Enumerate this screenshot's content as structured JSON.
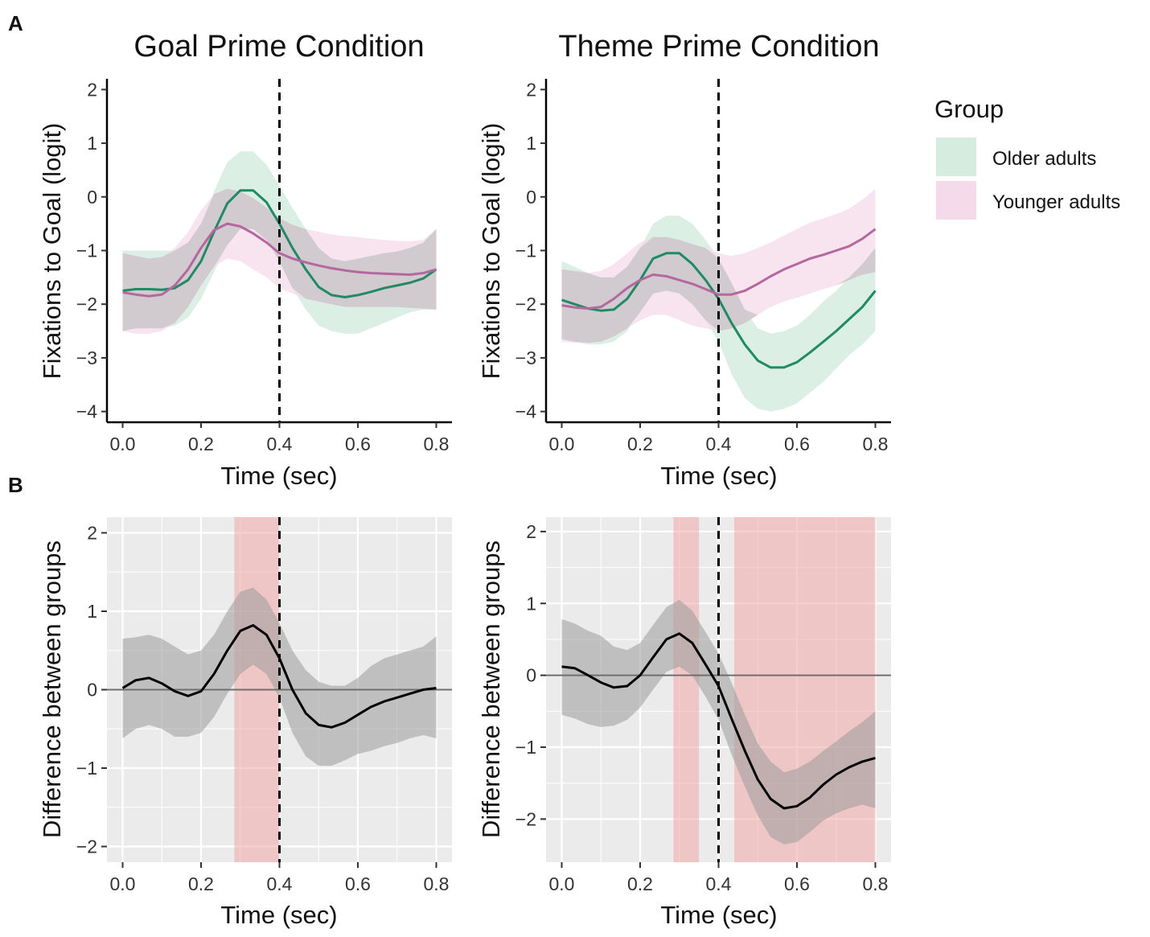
{
  "colors": {
    "older": "#1f8a64",
    "older_fill": "#d6ecdf",
    "younger": "#b5679f",
    "younger_fill": "#f5dbe9",
    "overlap_fill": "#b8b8b8",
    "diff_line": "#000000",
    "diff_band": "#9a9a9a",
    "sig_fill": "#f2a8a8",
    "panel_bg": "#ebebeb",
    "grid": "#ffffff",
    "zero_line": "#6e6e6e"
  },
  "panel_labels": {
    "a": "A",
    "b": "B"
  },
  "legend": {
    "title": "Group",
    "items": [
      {
        "key": "older",
        "label": "Older adults"
      },
      {
        "key": "younger",
        "label": "Younger adults"
      }
    ]
  },
  "chart_data": [
    {
      "id": "a_goal",
      "type": "line",
      "title": "Goal Prime Condition",
      "xlabel": "Time (sec)",
      "ylabel": "Fixations to Goal (logit)",
      "xlim": [
        -0.04,
        0.84
      ],
      "ylim": [
        -4.2,
        2.2
      ],
      "xticks": [
        0.0,
        0.2,
        0.4,
        0.6,
        0.8
      ],
      "xtick_labels": [
        "0.0",
        "0.2",
        "0.4",
        "0.6",
        "0.8"
      ],
      "yticks": [
        2,
        1,
        0,
        -1,
        -2,
        -3,
        -4
      ],
      "ytick_labels": [
        "2",
        "1",
        "0",
        "−1",
        "−2",
        "−3",
        "−4"
      ],
      "vline": 0.4,
      "x": [
        0.0,
        0.033,
        0.067,
        0.1,
        0.133,
        0.167,
        0.2,
        0.233,
        0.267,
        0.3,
        0.333,
        0.367,
        0.4,
        0.433,
        0.467,
        0.5,
        0.533,
        0.567,
        0.6,
        0.633,
        0.667,
        0.7,
        0.733,
        0.767,
        0.8
      ],
      "series": [
        {
          "name": "Older adults",
          "key": "older",
          "values": [
            -1.75,
            -1.72,
            -1.72,
            -1.73,
            -1.7,
            -1.55,
            -1.2,
            -0.65,
            -0.12,
            0.12,
            0.12,
            -0.1,
            -0.5,
            -0.95,
            -1.35,
            -1.68,
            -1.83,
            -1.87,
            -1.83,
            -1.77,
            -1.7,
            -1.65,
            -1.6,
            -1.52,
            -1.35
          ],
          "lower": [
            -2.5,
            -2.45,
            -2.45,
            -2.45,
            -2.4,
            -2.25,
            -1.9,
            -1.4,
            -0.9,
            -0.6,
            -0.6,
            -0.8,
            -1.2,
            -1.7,
            -2.1,
            -2.4,
            -2.5,
            -2.55,
            -2.55,
            -2.45,
            -2.35,
            -2.25,
            -2.15,
            -2.1,
            -2.1
          ],
          "upper": [
            -1.0,
            -1.0,
            -1.0,
            -1.0,
            -1.0,
            -0.85,
            -0.5,
            0.1,
            0.65,
            0.85,
            0.85,
            0.6,
            0.2,
            -0.2,
            -0.6,
            -0.95,
            -1.15,
            -1.2,
            -1.15,
            -1.1,
            -1.05,
            -1.02,
            -0.95,
            -0.85,
            -0.6
          ]
        },
        {
          "name": "Younger adults",
          "key": "younger",
          "values": [
            -1.78,
            -1.82,
            -1.85,
            -1.82,
            -1.65,
            -1.35,
            -0.95,
            -0.62,
            -0.5,
            -0.55,
            -0.68,
            -0.85,
            -1.05,
            -1.15,
            -1.22,
            -1.28,
            -1.33,
            -1.37,
            -1.4,
            -1.42,
            -1.43,
            -1.44,
            -1.45,
            -1.42,
            -1.35
          ],
          "lower": [
            -2.5,
            -2.55,
            -2.55,
            -2.5,
            -2.35,
            -2.05,
            -1.65,
            -1.3,
            -1.15,
            -1.2,
            -1.35,
            -1.5,
            -1.7,
            -1.8,
            -1.9,
            -1.95,
            -2.0,
            -2.05,
            -2.05,
            -2.05,
            -2.05,
            -2.05,
            -2.07,
            -2.08,
            -2.1
          ],
          "upper": [
            -1.05,
            -1.1,
            -1.15,
            -1.12,
            -0.95,
            -0.65,
            -0.25,
            0.05,
            0.15,
            0.1,
            -0.02,
            -0.2,
            -0.4,
            -0.52,
            -0.6,
            -0.65,
            -0.7,
            -0.73,
            -0.75,
            -0.78,
            -0.8,
            -0.82,
            -0.83,
            -0.8,
            -0.6
          ]
        }
      ]
    },
    {
      "id": "a_theme",
      "type": "line",
      "title": "Theme Prime Condition",
      "xlabel": "Time (sec)",
      "ylabel": "Fixations to Goal (logit)",
      "xlim": [
        -0.04,
        0.84
      ],
      "ylim": [
        -4.2,
        2.2
      ],
      "xticks": [
        0.0,
        0.2,
        0.4,
        0.6,
        0.8
      ],
      "xtick_labels": [
        "0.0",
        "0.2",
        "0.4",
        "0.6",
        "0.8"
      ],
      "yticks": [
        2,
        1,
        0,
        -1,
        -2,
        -3,
        -4
      ],
      "ytick_labels": [
        "2",
        "1",
        "0",
        "−1",
        "−2",
        "−3",
        "−4"
      ],
      "vline": 0.4,
      "x": [
        0.0,
        0.033,
        0.067,
        0.1,
        0.133,
        0.167,
        0.2,
        0.233,
        0.267,
        0.3,
        0.333,
        0.367,
        0.4,
        0.433,
        0.467,
        0.5,
        0.533,
        0.567,
        0.6,
        0.633,
        0.667,
        0.7,
        0.733,
        0.767,
        0.8
      ],
      "series": [
        {
          "name": "Older adults",
          "key": "older",
          "values": [
            -1.92,
            -2.0,
            -2.08,
            -2.12,
            -2.1,
            -1.9,
            -1.55,
            -1.15,
            -1.05,
            -1.05,
            -1.25,
            -1.55,
            -1.9,
            -2.35,
            -2.75,
            -3.05,
            -3.18,
            -3.18,
            -3.08,
            -2.9,
            -2.7,
            -2.5,
            -2.28,
            -2.05,
            -1.75
          ],
          "lower": [
            -2.65,
            -2.7,
            -2.75,
            -2.75,
            -2.7,
            -2.5,
            -2.15,
            -1.8,
            -1.75,
            -1.8,
            -2.0,
            -2.3,
            -2.7,
            -3.3,
            -3.75,
            -3.95,
            -4.0,
            -3.95,
            -3.85,
            -3.65,
            -3.45,
            -3.2,
            -2.95,
            -2.75,
            -2.5
          ],
          "upper": [
            -1.2,
            -1.3,
            -1.42,
            -1.5,
            -1.5,
            -1.3,
            -0.95,
            -0.5,
            -0.35,
            -0.35,
            -0.5,
            -0.8,
            -1.15,
            -1.6,
            -2.1,
            -2.45,
            -2.55,
            -2.5,
            -2.4,
            -2.2,
            -1.95,
            -1.75,
            -1.5,
            -1.25,
            -0.95
          ]
        },
        {
          "name": "Younger adults",
          "key": "younger",
          "values": [
            -2.02,
            -2.06,
            -2.08,
            -2.05,
            -1.9,
            -1.7,
            -1.55,
            -1.45,
            -1.48,
            -1.55,
            -1.62,
            -1.72,
            -1.82,
            -1.82,
            -1.75,
            -1.62,
            -1.48,
            -1.35,
            -1.25,
            -1.15,
            -1.08,
            -1.0,
            -0.92,
            -0.78,
            -0.6
          ],
          "lower": [
            -2.7,
            -2.72,
            -2.72,
            -2.7,
            -2.6,
            -2.45,
            -2.3,
            -2.2,
            -2.2,
            -2.3,
            -2.4,
            -2.45,
            -2.5,
            -2.45,
            -2.35,
            -2.2,
            -2.05,
            -1.95,
            -1.88,
            -1.8,
            -1.72,
            -1.65,
            -1.55,
            -1.45,
            -1.4
          ],
          "upper": [
            -1.35,
            -1.38,
            -1.42,
            -1.38,
            -1.25,
            -1.05,
            -0.85,
            -0.75,
            -0.75,
            -0.8,
            -0.88,
            -0.95,
            -1.05,
            -1.1,
            -1.05,
            -0.95,
            -0.85,
            -0.72,
            -0.6,
            -0.48,
            -0.4,
            -0.32,
            -0.22,
            -0.05,
            0.15
          ]
        }
      ]
    },
    {
      "id": "b_goal",
      "type": "line",
      "title": "",
      "xlabel": "Time (sec)",
      "ylabel": "Difference between groups",
      "xlim": [
        -0.04,
        0.84
      ],
      "ylim": [
        -2.2,
        2.2
      ],
      "xticks": [
        0.0,
        0.2,
        0.4,
        0.6,
        0.8
      ],
      "xtick_labels": [
        "0.0",
        "0.2",
        "0.4",
        "0.6",
        "0.8"
      ],
      "yticks": [
        2,
        1,
        0,
        -1,
        -2
      ],
      "ytick_labels": [
        "2",
        "1",
        "0",
        "−1",
        "−2"
      ],
      "vline": 0.4,
      "hline": 0,
      "grid": true,
      "significant_intervals": [
        [
          0.285,
          0.4
        ]
      ],
      "x": [
        0.0,
        0.033,
        0.067,
        0.1,
        0.133,
        0.167,
        0.2,
        0.233,
        0.267,
        0.3,
        0.333,
        0.367,
        0.4,
        0.433,
        0.467,
        0.5,
        0.533,
        0.567,
        0.6,
        0.633,
        0.667,
        0.7,
        0.733,
        0.767,
        0.8
      ],
      "series": [
        {
          "name": "Difference",
          "key": "diff",
          "values": [
            0.02,
            0.12,
            0.15,
            0.08,
            -0.02,
            -0.08,
            -0.02,
            0.2,
            0.5,
            0.75,
            0.82,
            0.7,
            0.4,
            0.0,
            -0.3,
            -0.45,
            -0.48,
            -0.42,
            -0.32,
            -0.22,
            -0.15,
            -0.1,
            -0.05,
            0.0,
            0.02
          ],
          "lower": [
            -0.62,
            -0.5,
            -0.45,
            -0.5,
            -0.6,
            -0.6,
            -0.55,
            -0.35,
            -0.05,
            0.2,
            0.32,
            0.2,
            -0.1,
            -0.55,
            -0.85,
            -0.97,
            -0.97,
            -0.9,
            -0.82,
            -0.78,
            -0.72,
            -0.68,
            -0.62,
            -0.58,
            -0.62
          ],
          "upper": [
            0.65,
            0.67,
            0.7,
            0.65,
            0.55,
            0.45,
            0.5,
            0.7,
            1.0,
            1.25,
            1.3,
            1.15,
            0.85,
            0.5,
            0.25,
            0.1,
            0.05,
            0.05,
            0.15,
            0.3,
            0.4,
            0.45,
            0.5,
            0.55,
            0.68
          ]
        }
      ]
    },
    {
      "id": "b_theme",
      "type": "line",
      "title": "",
      "xlabel": "Time (sec)",
      "ylabel": "Difference between groups",
      "xlim": [
        -0.04,
        0.84
      ],
      "ylim": [
        -2.6,
        2.2
      ],
      "xticks": [
        0.0,
        0.2,
        0.4,
        0.6,
        0.8
      ],
      "xtick_labels": [
        "0.0",
        "0.2",
        "0.4",
        "0.6",
        "0.8"
      ],
      "yticks": [
        2,
        1,
        0,
        -1,
        -2
      ],
      "ytick_labels": [
        "2",
        "1",
        "0",
        "−1",
        "−2"
      ],
      "vline": 0.4,
      "hline": 0,
      "grid": true,
      "significant_intervals": [
        [
          0.285,
          0.35
        ],
        [
          0.44,
          0.8
        ]
      ],
      "x": [
        0.0,
        0.033,
        0.067,
        0.1,
        0.133,
        0.167,
        0.2,
        0.233,
        0.267,
        0.3,
        0.333,
        0.367,
        0.4,
        0.433,
        0.467,
        0.5,
        0.533,
        0.567,
        0.6,
        0.633,
        0.667,
        0.7,
        0.733,
        0.767,
        0.8
      ],
      "series": [
        {
          "name": "Difference",
          "key": "diff",
          "values": [
            0.12,
            0.1,
            0.0,
            -0.1,
            -0.17,
            -0.15,
            0.0,
            0.25,
            0.5,
            0.58,
            0.45,
            0.15,
            -0.15,
            -0.6,
            -1.05,
            -1.45,
            -1.72,
            -1.85,
            -1.82,
            -1.7,
            -1.52,
            -1.38,
            -1.28,
            -1.2,
            -1.15
          ],
          "lower": [
            -0.55,
            -0.6,
            -0.68,
            -0.72,
            -0.7,
            -0.62,
            -0.45,
            -0.2,
            0.05,
            0.12,
            0.0,
            -0.3,
            -0.62,
            -1.1,
            -1.55,
            -1.95,
            -2.25,
            -2.35,
            -2.32,
            -2.18,
            -2.02,
            -1.92,
            -1.85,
            -1.8,
            -1.85
          ],
          "upper": [
            0.78,
            0.72,
            0.62,
            0.55,
            0.4,
            0.35,
            0.45,
            0.7,
            0.95,
            1.05,
            0.9,
            0.6,
            0.3,
            -0.1,
            -0.55,
            -0.95,
            -1.2,
            -1.35,
            -1.3,
            -1.2,
            -1.05,
            -0.92,
            -0.78,
            -0.65,
            -0.5
          ]
        }
      ]
    }
  ]
}
